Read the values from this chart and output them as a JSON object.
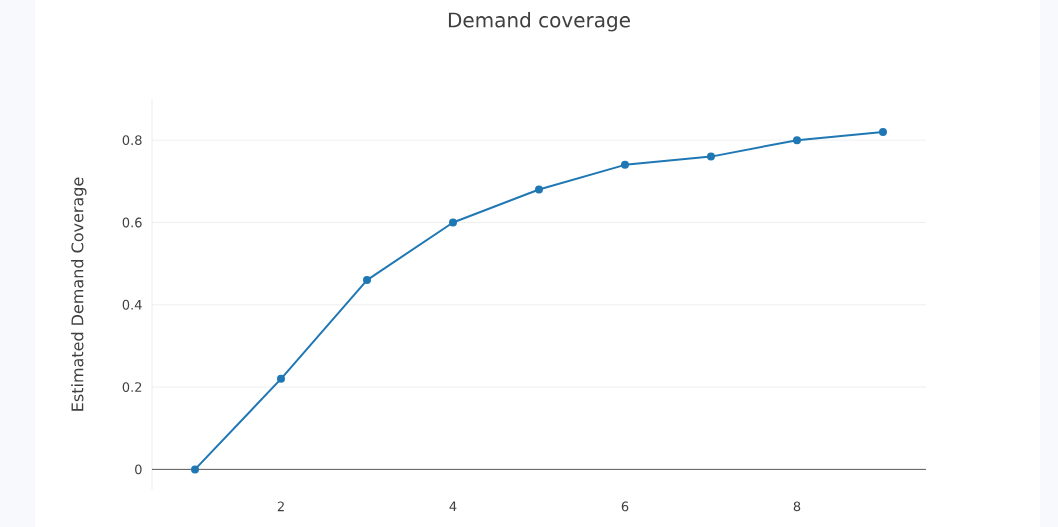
{
  "chart_data": {
    "type": "line",
    "title": "Demand coverage",
    "ylabel": "Estimated Demand Coverage",
    "x": [
      1,
      2,
      3,
      4,
      5,
      6,
      7,
      8,
      9
    ],
    "series": [
      {
        "color": "#1f77b4",
        "values": [
          0,
          0.22,
          0.46,
          0.6,
          0.68,
          0.74,
          0.76,
          0.8,
          0.82
        ]
      }
    ],
    "xlim": [
      0.5,
      9.5
    ],
    "ylim": [
      -0.05,
      0.9
    ],
    "xticks": [
      2,
      4,
      6,
      8
    ],
    "yticks": [
      0,
      0.2,
      0.4,
      0.6,
      0.8
    ],
    "grid": "y",
    "marker": "circle",
    "line_style": "solid"
  }
}
